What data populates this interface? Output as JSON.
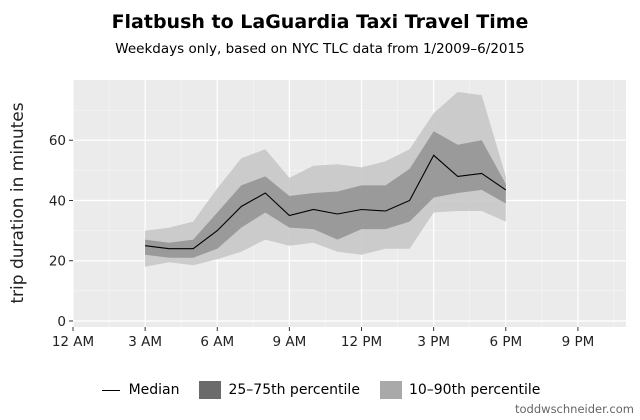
{
  "chart_data": {
    "type": "area",
    "title": "Flatbush to LaGuardia Taxi Travel Time",
    "subtitle": "Weekdays only, based on NYC TLC data from 1/2009–6/2015",
    "ylabel": "trip duration in minutes",
    "xlabel": "",
    "x_ticks": [
      "12 AM",
      "3 AM",
      "6 AM",
      "9 AM",
      "12 PM",
      "3 PM",
      "6 PM",
      "9 PM"
    ],
    "x_tick_hours": [
      0,
      3,
      6,
      9,
      12,
      15,
      18,
      21
    ],
    "xlim": [
      0,
      23
    ],
    "y_ticks": [
      0,
      20,
      40,
      60
    ],
    "ylim": [
      -2,
      80
    ],
    "grid": true,
    "legend_position": "bottom",
    "x": [
      3,
      4,
      5,
      6,
      7,
      8,
      9,
      10,
      11,
      12,
      13,
      14,
      15,
      16,
      17,
      18
    ],
    "median": [
      25,
      24,
      24,
      30,
      38,
      42.5,
      35,
      37,
      35.5,
      37,
      36.5,
      40,
      55,
      48,
      49,
      43.5
    ],
    "p25": [
      22,
      21,
      21,
      24,
      31,
      36,
      31,
      30.5,
      27,
      30.5,
      30.5,
      33,
      41,
      42.5,
      43.5,
      39
    ],
    "p75": [
      27,
      26,
      27,
      36,
      45,
      48,
      41.5,
      42.5,
      43,
      45,
      45,
      50.5,
      63,
      58.5,
      60,
      45.5
    ],
    "p10": [
      18,
      19.5,
      18.5,
      20.5,
      23,
      27,
      25,
      26,
      23,
      22,
      24,
      24,
      36,
      36.5,
      36.5,
      33
    ],
    "p90": [
      30,
      31,
      33,
      44,
      54,
      57,
      47.5,
      51.5,
      52,
      51,
      53,
      57,
      69,
      76,
      75,
      48
    ],
    "series": [
      {
        "name": "Median",
        "key": "median",
        "color": "#000000"
      },
      {
        "name": "25–75th percentile",
        "key": "p25_p75",
        "color": "#6b6b6b"
      },
      {
        "name": "10–90th percentile",
        "key": "p10_p90",
        "color": "#a9a9a9"
      }
    ]
  },
  "credit": "toddwschneider.com"
}
